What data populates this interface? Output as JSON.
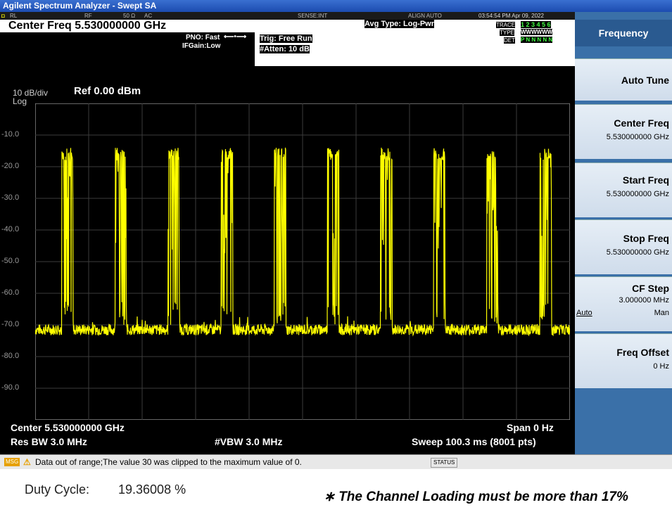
{
  "window": {
    "title": "Agilent Spectrum Analyzer - Swept SA"
  },
  "status_row": {
    "rl": "RL",
    "rf": "RF",
    "impedance": "50 Ω",
    "coupling": "AC",
    "sense": "SENSE:INT",
    "align": "ALIGN AUTO",
    "datetime": "03:54:54 PM Apr 09, 2022"
  },
  "header": {
    "center_freq": "Center Freq 5.530000000 GHz",
    "pno": "PNO: Fast",
    "ifgain": "IFGain:Low",
    "trig": "Trig: Free Run",
    "atten": "#Atten: 10 dB",
    "avg_type": "Avg Type: Log-Pwr",
    "trace_label": "TRACE",
    "trace_value": "1 2 3 4 5 6",
    "type_label": "TYPE",
    "type_value": "WWWWWW",
    "det_label": "DET",
    "det_value": "P N N N N N"
  },
  "plot": {
    "scale": "10 dB/div",
    "log": "Log",
    "ref": "Ref 0.00 dBm",
    "y_ticks": [
      "-10.0",
      "-20.0",
      "-30.0",
      "-40.0",
      "-50.0",
      "-60.0",
      "-70.0",
      "-80.0",
      "-90.0"
    ],
    "trace_color": "#ffff00",
    "grid_color": "#3c3c3c",
    "noise_floor_dbm": -70,
    "burst_peak_dbm": -14,
    "burst_count": 10
  },
  "footer": {
    "center": "Center 5.530000000 GHz",
    "span": "Span 0 Hz",
    "res_bw": "Res BW 3.0 MHz",
    "vbw": "#VBW 3.0 MHz",
    "sweep": "Sweep  100.3 ms (8001 pts)"
  },
  "softkeys": {
    "title": "Frequency",
    "auto_tune": "Auto Tune",
    "center_freq": {
      "label": "Center Freq",
      "value": "5.530000000 GHz"
    },
    "start_freq": {
      "label": "Start Freq",
      "value": "5.530000000 GHz"
    },
    "stop_freq": {
      "label": "Stop Freq",
      "value": "5.530000000 GHz"
    },
    "cf_step": {
      "label": "CF Step",
      "value": "3.000000 MHz",
      "auto": "Auto",
      "man": "Man"
    },
    "freq_offset": {
      "label": "Freq Offset",
      "value": "0 Hz"
    }
  },
  "message": {
    "tag": "MSG",
    "text": "Data out of range;The value 30 was clipped to the maximum value of 0.",
    "status": "STATUS"
  },
  "result": {
    "duty_label": "Duty Cycle:",
    "duty_value": "19.36008 %",
    "note": "∗ The Channel Loading must be more than 17%"
  }
}
